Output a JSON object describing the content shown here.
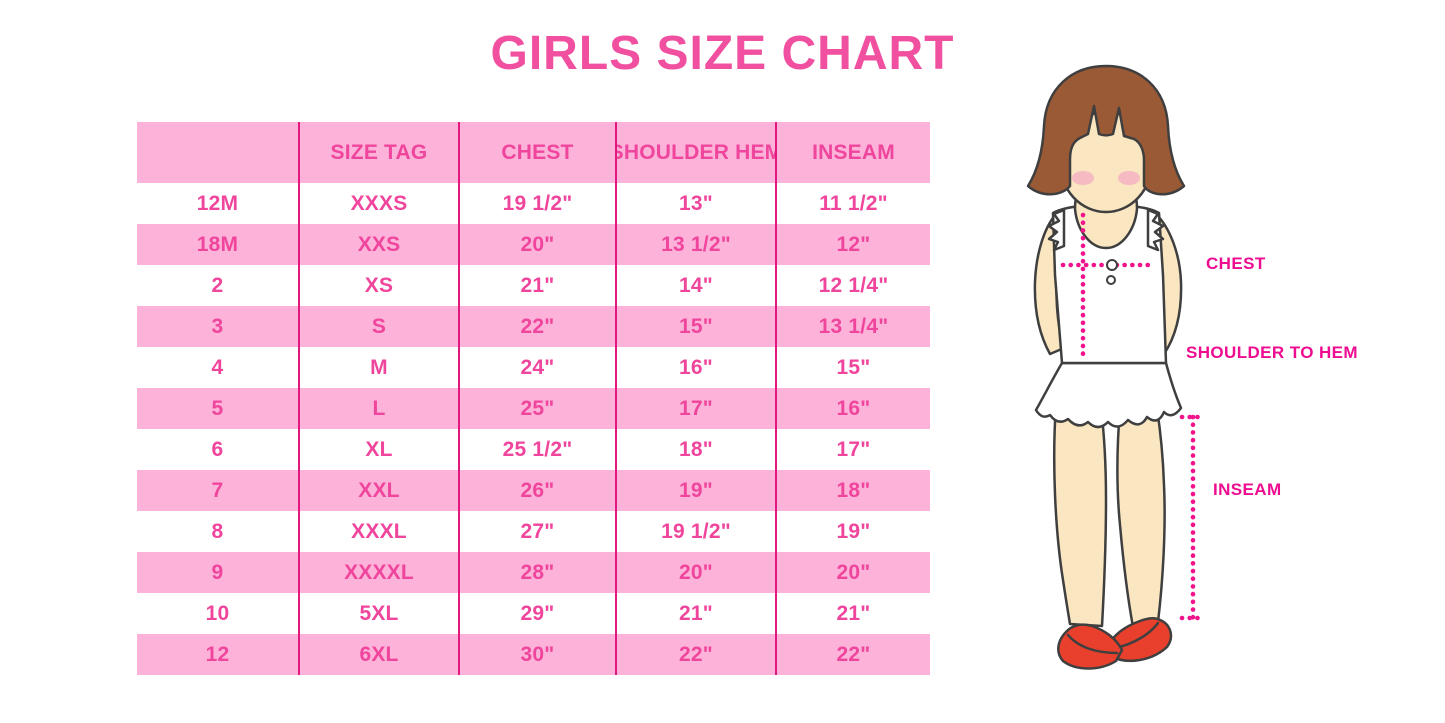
{
  "chart_data": {
    "type": "table",
    "title": "GIRLS SIZE CHART",
    "columns": [
      "",
      "SIZE TAG",
      "CHEST",
      "SHOULDER HEM",
      "INSEAM"
    ],
    "rows": [
      [
        "12M",
        "XXXS",
        "19 1/2\"",
        "13\"",
        "11 1/2\""
      ],
      [
        "18M",
        "XXS",
        "20\"",
        "13 1/2\"",
        "12\""
      ],
      [
        "2",
        "XS",
        "21\"",
        "14\"",
        "12 1/4\""
      ],
      [
        "3",
        "S",
        "22\"",
        "15\"",
        "13 1/4\""
      ],
      [
        "4",
        "M",
        "24\"",
        "16\"",
        "15\""
      ],
      [
        "5",
        "L",
        "25\"",
        "17\"",
        "16\""
      ],
      [
        "6",
        "XL",
        "25 1/2\"",
        "18\"",
        "17\""
      ],
      [
        "7",
        "XXL",
        "26\"",
        "19\"",
        "18\""
      ],
      [
        "8",
        "XXXL",
        "27\"",
        "19 1/2\"",
        "19\""
      ],
      [
        "9",
        "XXXXL",
        "28\"",
        "20\"",
        "20\""
      ],
      [
        "10",
        "5XL",
        "29\"",
        "21\"",
        "21\""
      ],
      [
        "12",
        "6XL",
        "30\"",
        "22\"",
        "22\""
      ]
    ],
    "layout": {
      "striped": true,
      "stripe_pattern": "header pink, data rows alternate white/pink starting white",
      "grid": "vertical magenta dividers between columns only, no outer border"
    }
  },
  "diagram": {
    "chest_label": "CHEST",
    "shoulder_to_hem_label": "SHOULDER TO HEM",
    "inseam_label": "INSEAM"
  },
  "colors": {
    "background": "#FFFFFF",
    "title_pink": "#F0509F",
    "band_pink": "#FCB2D9",
    "cell_text_pink": "#F0459C",
    "divider_magenta": "#E2187F",
    "dot_magenta": "#F0138C",
    "label_magenta": "#EE0C90",
    "hair_brown": "#9A5A35",
    "skin": "#FAE6C0",
    "outline_dark": "#3F3F3F",
    "shoe_red": "#E8402C",
    "blush_pink": "#F5AFC2",
    "shirt_white": "#FFFFFF"
  }
}
